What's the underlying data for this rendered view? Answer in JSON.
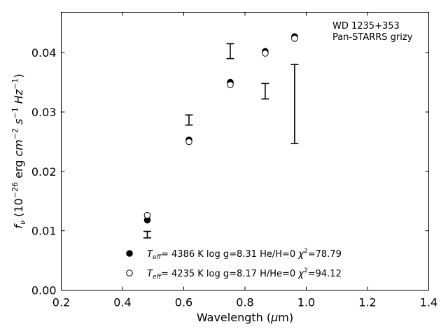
{
  "chart_data": {
    "type": "scatter",
    "xlim": [
      0.2,
      1.4
    ],
    "ylim": [
      0.0,
      0.0468
    ],
    "x_ticks": [
      0.2,
      0.4,
      0.6,
      0.8,
      1.0,
      1.2,
      1.4
    ],
    "x_tick_labels": [
      "0.2",
      "0.4",
      "0.6",
      "0.8",
      "1.0",
      "1.2",
      "1.4"
    ],
    "y_ticks": [
      0.0,
      0.01,
      0.02,
      0.03,
      0.04
    ],
    "y_tick_labels": [
      "0.00",
      "0.01",
      "0.02",
      "0.03",
      "0.04"
    ],
    "xlabel": {
      "main": "Wavelength (",
      "greek": "μ",
      "unit": "m)"
    },
    "ylabel": {
      "f": "f",
      "nu": "ν",
      "open": " (10",
      "exp1": "−26",
      "erg": " erg ",
      "cm": "cm",
      "exp2": "−2",
      "s": " s",
      "exp3": "−1",
      "hz": " Hz",
      "exp4": "−1",
      "close": ")"
    },
    "annotation": [
      "WD 1235+353",
      "Pan-STARRS grizy"
    ],
    "observed": [
      {
        "x": 0.481,
        "y": 0.0094,
        "low": 0.0088,
        "high": 0.0099
      },
      {
        "x": 0.617,
        "y": 0.0287,
        "low": 0.0278,
        "high": 0.0295
      },
      {
        "x": 0.752,
        "y": 0.0403,
        "low": 0.039,
        "high": 0.0415
      },
      {
        "x": 0.866,
        "y": 0.0335,
        "low": 0.0322,
        "high": 0.0348
      },
      {
        "x": 0.962,
        "y": 0.0314,
        "low": 0.0247,
        "high": 0.038
      }
    ],
    "series": [
      {
        "marker": "filled",
        "x": [
          0.481,
          0.617,
          0.752,
          0.866,
          0.962
        ],
        "y": [
          0.0118,
          0.0253,
          0.035,
          0.0402,
          0.0427
        ],
        "legend": {
          "T": "T",
          "eff": "eff",
          "text": "=  4386 K  log g=8.31  He/H=0  ",
          "chi": "χ",
          "sq": "2",
          "val": "=78.79"
        }
      },
      {
        "marker": "open",
        "x": [
          0.481,
          0.617,
          0.752,
          0.866,
          0.962
        ],
        "y": [
          0.0126,
          0.025,
          0.0346,
          0.0399,
          0.0424
        ],
        "legend": {
          "T": "T",
          "eff": "eff",
          "text": "=  4235 K  log g=8.17  H/He=0  ",
          "chi": "χ",
          "sq": "2",
          "val": "=94.12"
        }
      }
    ]
  }
}
